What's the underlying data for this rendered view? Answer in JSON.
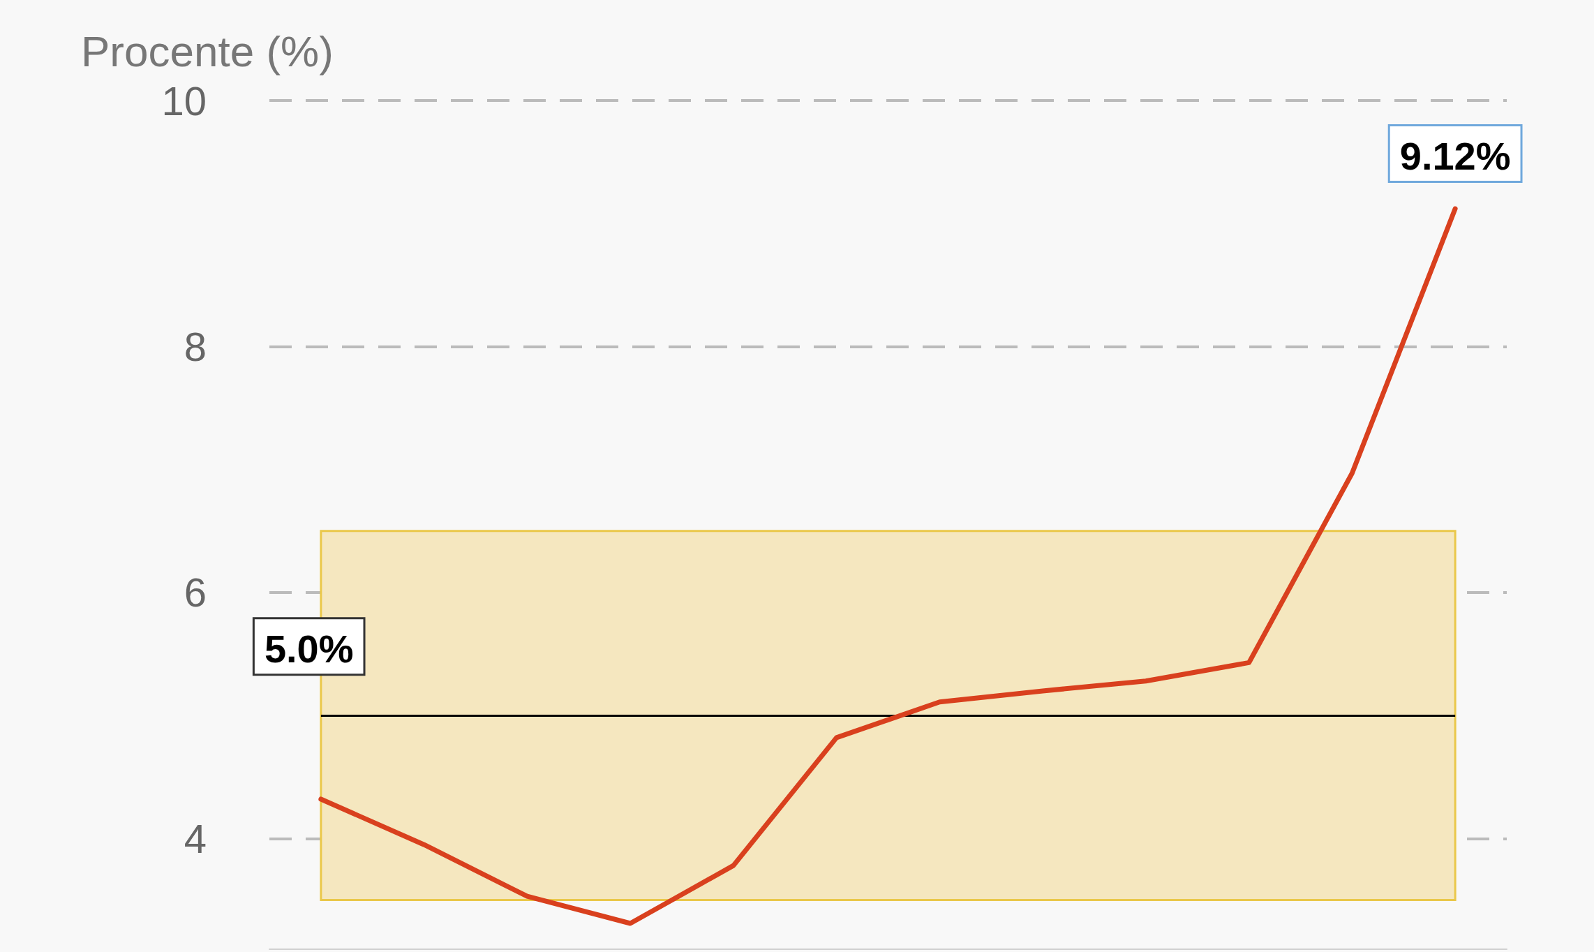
{
  "chart_data": {
    "type": "line",
    "ylabel": "Procente (%)",
    "categories": [
      null,
      null,
      null,
      null,
      null,
      null,
      null,
      null,
      null,
      null,
      null,
      null
    ],
    "series": [
      {
        "color": "#d9401e",
        "values": [
          4.32,
          3.95,
          3.53,
          3.31,
          3.78,
          4.82,
          5.11,
          5.2,
          5.28,
          5.43,
          6.97,
          9.12
        ],
        "value_labels": [
          null,
          null,
          null,
          null,
          null,
          null,
          null,
          null,
          null,
          null,
          null,
          "9.12%"
        ]
      }
    ],
    "ylim": [
      3.1,
      10
    ],
    "yticks": [
      4,
      6,
      8,
      10
    ],
    "grid": "y",
    "marker": "none",
    "line_style": "solid",
    "ref_lines": [
      {
        "axis": "y",
        "value": 5.0,
        "label": "5.0%",
        "color": "#000000"
      }
    ],
    "bands": [
      {
        "axis": "y",
        "from": 3.5,
        "to": 6.5,
        "color": "#f5e7bf"
      }
    ]
  }
}
